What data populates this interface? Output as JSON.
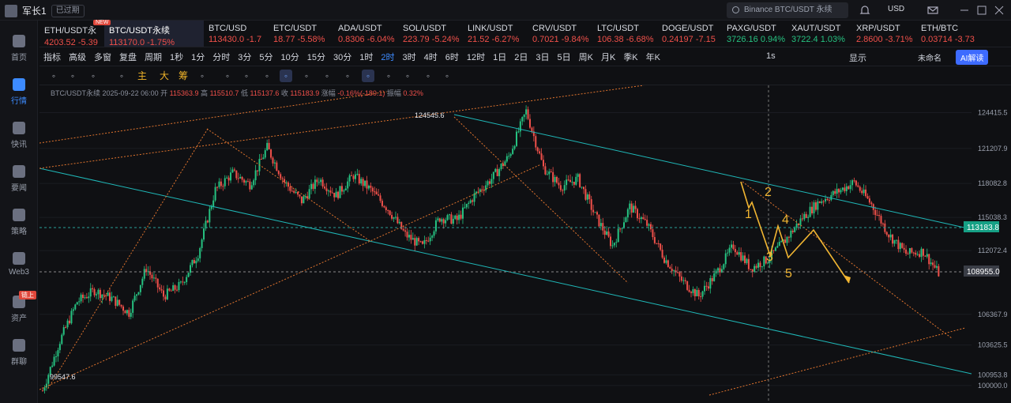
{
  "user": {
    "name": "军长1",
    "verified": "已过期"
  },
  "search": {
    "placeholder": "Binance BTC/USDT 永续"
  },
  "currency": "USD",
  "sidebar": [
    {
      "label": "首页",
      "active": false
    },
    {
      "label": "行情",
      "active": true
    },
    {
      "label": "快讯",
      "active": false
    },
    {
      "label": "要闻",
      "active": false
    },
    {
      "label": "策略",
      "active": false
    },
    {
      "label": "Web3",
      "active": false
    },
    {
      "label": "资产",
      "active": false,
      "tag": "链上"
    },
    {
      "label": "群聊",
      "active": false
    }
  ],
  "tickers": [
    {
      "symbol": "ETH/USDT永",
      "price": "4203.52",
      "change": "-5.39",
      "dir": "down"
    },
    {
      "symbol": "BTC/USDT永续",
      "price": "113170.0",
      "change": "-1.75%",
      "dir": "down",
      "active": true
    },
    {
      "symbol": "BTC/USD",
      "price": "113430.0",
      "change": "-1.7",
      "dir": "down"
    },
    {
      "symbol": "ETC/USDT",
      "price": "18.77",
      "change": "-5.58%",
      "dir": "down"
    },
    {
      "symbol": "ADA/USDT",
      "price": "0.8306",
      "change": "-6.04%",
      "dir": "down"
    },
    {
      "symbol": "SOL/USDT",
      "price": "223.79",
      "change": "-5.24%",
      "dir": "down"
    },
    {
      "symbol": "LINK/USDT",
      "price": "21.52",
      "change": "-6.27%",
      "dir": "down"
    },
    {
      "symbol": "CRV/USDT",
      "price": "0.7021",
      "change": "-9.84%",
      "dir": "down"
    },
    {
      "symbol": "LTC/USDT",
      "price": "106.38",
      "change": "-6.68%",
      "dir": "down"
    },
    {
      "symbol": "DOGE/USDT",
      "price": "0.24197",
      "change": "-7.15",
      "dir": "down"
    },
    {
      "symbol": "PAXG/USDT",
      "price": "3726.16",
      "change": "0.94%",
      "dir": "up"
    },
    {
      "symbol": "XAUT/USDT",
      "price": "3722.4",
      "change": "1.03%",
      "dir": "up"
    },
    {
      "symbol": "XRP/USDT",
      "price": "2.8600",
      "change": "-3.71%",
      "dir": "down"
    },
    {
      "symbol": "ETH/BTC",
      "price": "0.03714",
      "change": "-3.73",
      "dir": "down"
    }
  ],
  "new_tag": "NEW",
  "timeframes": [
    "指标",
    "高级",
    "多窗",
    "复盘",
    "周期",
    "1秒",
    "1分",
    "分时",
    "3分",
    "5分",
    "10分",
    "15分",
    "30分",
    "1时",
    "2时",
    "3时",
    "4时",
    "6时",
    "12时",
    "1日",
    "2日",
    "3日",
    "5日",
    "周K",
    "月K",
    "季K",
    "年K"
  ],
  "active_timeframe": "2时",
  "right_controls": {
    "interval": "1s",
    "display": "显示",
    "layout": "未命名",
    "ai": "AI解读"
  },
  "draw_tools": [
    "主",
    "大",
    "筹"
  ],
  "legend": {
    "pair": "BTC/USDT永续",
    "date": "2025-09-22 06:00",
    "open_label": "开",
    "open": "115363.9",
    "high_label": "高",
    "high": "115510.7",
    "low_label": "低",
    "low": "115137.6",
    "close_label": "收",
    "close": "115183.9",
    "change_label": "涨幅",
    "change": "-0.16%(-180.1)",
    "amp_label": "振幅",
    "amp": "0.32%"
  },
  "chart_data": {
    "type": "candlestick",
    "y_ticks": [
      124415.5,
      121207.9,
      118082.8,
      115038.3,
      112072.4,
      106367.9,
      103625.5,
      100953.8,
      100000.0
    ],
    "ylim": [
      99000,
      126000
    ],
    "current_price": "113183.8",
    "crosshair_price": "108955.0",
    "high_label": "124545.6",
    "low_label": "99547.6",
    "wave_labels": [
      "1",
      "2",
      "3",
      "4",
      "5"
    ],
    "path": [
      99547.6,
      104000,
      107500,
      108500,
      107800,
      106500,
      110500,
      108000,
      109000,
      111800,
      117500,
      119000,
      118000,
      121300,
      118200,
      116500,
      118500,
      117000,
      118800,
      117500,
      115800,
      113500,
      112400,
      115000,
      114800,
      117000,
      118500,
      120500,
      124545.6,
      119500,
      117800,
      118500,
      115200,
      112500,
      116000,
      114400,
      111400,
      109400,
      108000,
      110000,
      112500,
      110500,
      111300,
      113000,
      115000,
      116500,
      117300,
      118200,
      116200,
      113500,
      111800,
      112000,
      109800
    ]
  }
}
